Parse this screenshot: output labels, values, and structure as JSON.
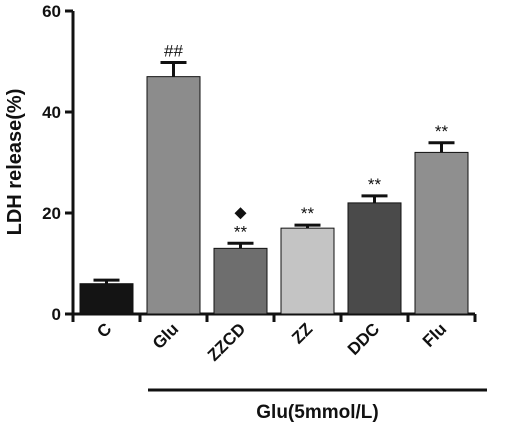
{
  "chart_data": {
    "type": "bar",
    "title": "",
    "ylabel": "LDH release(%)",
    "xlabel": "",
    "ylim": [
      0,
      60
    ],
    "yticks": [
      0,
      20,
      40,
      60
    ],
    "grid": false,
    "categories": [
      "C",
      "Glu",
      "ZZCD",
      "ZZ",
      "DDC",
      "Flu"
    ],
    "values": [
      6,
      47,
      13,
      17,
      22,
      32
    ],
    "errors": [
      0.7,
      2.8,
      1.0,
      0.6,
      1.4,
      1.9
    ],
    "annotations": [
      "",
      "##",
      "**",
      "**",
      "**",
      "**"
    ],
    "diamond_marker": [
      false,
      false,
      true,
      false,
      false,
      false
    ],
    "bar_colors": [
      "#141414",
      "#8c8c8c",
      "#6e6e6e",
      "#c4c4c4",
      "#4a4a4a",
      "#8f8f8f"
    ],
    "group_label": "Glu(5mmol/L)"
  }
}
